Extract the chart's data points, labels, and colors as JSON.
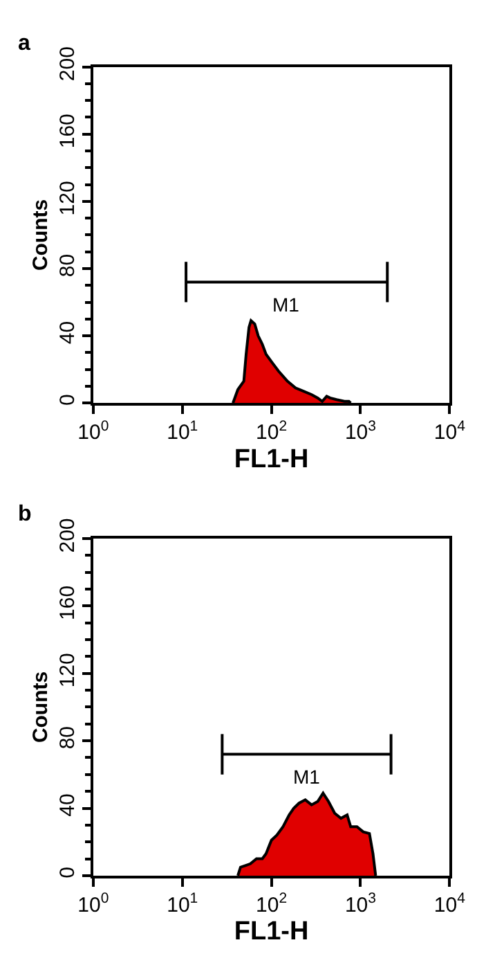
{
  "chart_data": [
    {
      "type": "area",
      "title": "a",
      "xlabel": "FL1-H",
      "ylabel": "Counts",
      "x": [
        37,
        42,
        49,
        52,
        56,
        59,
        65,
        71,
        79,
        87,
        102,
        120,
        151,
        186,
        229,
        282,
        331,
        372,
        417,
        457,
        537,
        661,
        741,
        776
      ],
      "series": [
        {
          "color": "#e00000",
          "values": [
            0,
            8,
            13,
            29,
            45,
            49,
            47,
            40,
            35,
            29,
            24,
            19,
            13,
            9,
            7,
            5,
            3,
            1,
            4,
            3,
            2,
            1,
            1,
            0
          ]
        },
        {
          "type": "line",
          "color": "#000000",
          "x": [
            11,
            2000
          ],
          "values": [
            72,
            72
          ],
          "errors": [
            [
              60,
              84
            ],
            [
              60,
              84
            ]
          ]
        }
      ],
      "annotations": [
        {
          "text": "M1",
          "x": 148,
          "y": 72
        }
      ],
      "xlim": [
        1,
        10000
      ],
      "log": "x",
      "xticks": [
        {
          "value": 1,
          "label": "10$^{0}$"
        },
        {
          "value": 10,
          "label": "10$^{1}$"
        },
        {
          "value": 100,
          "label": "10$^{2}$"
        },
        {
          "value": 1000,
          "label": "10$^{3}$"
        },
        {
          "value": 10000,
          "label": "10$^{4}$"
        }
      ],
      "ylim": [
        0,
        200
      ],
      "yticks": [
        0,
        40,
        80,
        120,
        160,
        200
      ]
    },
    {
      "type": "area",
      "title": "b",
      "xlabel": "FL1-H",
      "ylabel": "Counts",
      "x": [
        42,
        45,
        51,
        58,
        68,
        79,
        87,
        100,
        115,
        135,
        158,
        178,
        204,
        240,
        282,
        331,
        380,
        437,
        513,
        603,
        708,
        776,
        912,
        1072,
        1259,
        1380,
        1479
      ],
      "series": [
        {
          "color": "#e00000",
          "values": [
            0,
            5,
            6,
            7,
            10,
            10,
            13,
            21,
            24,
            29,
            36,
            40,
            43,
            45,
            42,
            44,
            49,
            44,
            37,
            34,
            36,
            29,
            29,
            26,
            25,
            13,
            0
          ]
        },
        {
          "type": "line",
          "color": "#000000",
          "x": [
            28,
            2200
          ],
          "values": [
            72,
            72
          ],
          "errors": [
            [
              60,
              84
            ],
            [
              60,
              84
            ]
          ]
        }
      ],
      "annotations": [
        {
          "text": "M1",
          "x": 248,
          "y": 72
        }
      ],
      "xlim": [
        1,
        10000
      ],
      "log": "x",
      "xticks": [
        {
          "value": 1,
          "label": "10$^{0}$"
        },
        {
          "value": 10,
          "label": "10$^{1}$"
        },
        {
          "value": 100,
          "label": "10$^{2}$"
        },
        {
          "value": 1000,
          "label": "10$^{3}$"
        },
        {
          "value": 10000,
          "label": "10$^{4}$"
        }
      ],
      "ylim": [
        0,
        200
      ],
      "yticks": [
        0,
        40,
        80,
        120,
        160,
        200
      ]
    }
  ]
}
